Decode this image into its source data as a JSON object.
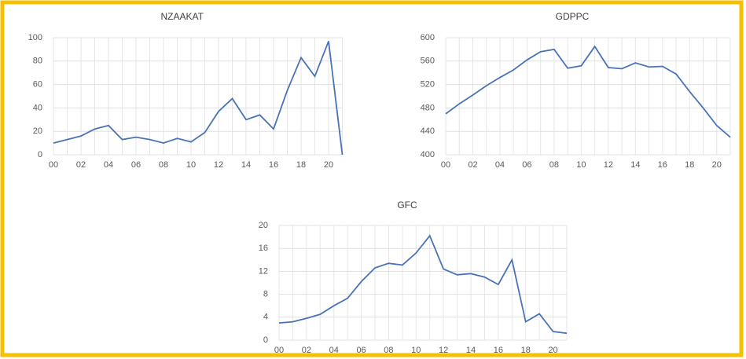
{
  "chart_data": [
    {
      "type": "line",
      "title": "NZAAKAT",
      "categories": [
        "00",
        null,
        "02",
        null,
        "04",
        null,
        "06",
        null,
        "08",
        null,
        "10",
        null,
        "12",
        null,
        "14",
        null,
        "16",
        null,
        "18",
        null,
        "20",
        null
      ],
      "values": [
        10,
        13,
        16,
        22,
        25,
        13,
        15,
        13,
        10,
        14,
        11,
        19,
        37,
        48,
        30,
        34,
        22,
        55,
        83,
        67,
        97,
        0
      ],
      "color": "#4a73b5",
      "ylim": [
        0,
        100
      ],
      "yticks": [
        0,
        20,
        40,
        60,
        80,
        100
      ],
      "grid": true
    },
    {
      "type": "line",
      "title": "GDPPC",
      "categories": [
        "00",
        null,
        "02",
        null,
        "04",
        null,
        "06",
        null,
        "08",
        null,
        "10",
        null,
        "12",
        null,
        "14",
        null,
        "16",
        null,
        "18",
        null,
        "20",
        null
      ],
      "values": [
        470,
        487,
        502,
        518,
        532,
        545,
        562,
        576,
        580,
        548,
        552,
        585,
        549,
        547,
        557,
        550,
        551,
        538,
        508,
        480,
        450,
        430
      ],
      "color": "#4a73b5",
      "ylim": [
        400,
        600
      ],
      "yticks": [
        400,
        440,
        480,
        520,
        560,
        600
      ],
      "grid": true
    },
    {
      "type": "line",
      "title": "GFC",
      "categories": [
        "00",
        null,
        "02",
        null,
        "04",
        null,
        "06",
        null,
        "08",
        null,
        "10",
        null,
        "12",
        null,
        "14",
        null,
        "16",
        null,
        "18",
        null,
        "20",
        null
      ],
      "values": [
        3,
        3.2,
        3.8,
        4.5,
        6,
        7.3,
        10.2,
        12.6,
        13.4,
        13.1,
        15.2,
        18.2,
        12.4,
        11.4,
        11.6,
        11,
        9.7,
        14,
        3.2,
        4.6,
        1.5,
        1.2
      ],
      "color": "#4a73b5",
      "ylim": [
        0,
        20
      ],
      "yticks": [
        0,
        4,
        8,
        12,
        16,
        20
      ],
      "grid": true
    }
  ]
}
